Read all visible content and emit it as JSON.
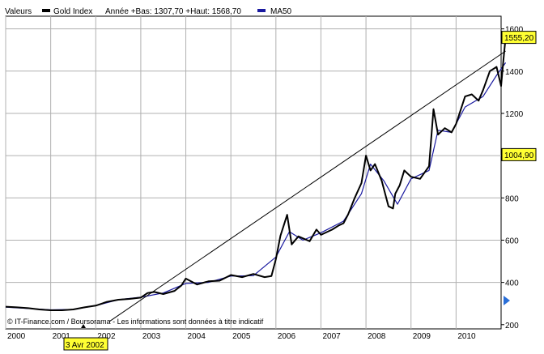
{
  "legend": {
    "label_prefix": "Valeurs",
    "series_name": "Gold Index",
    "stats": "Année +Bas: 1307,70 +Haut: 1568,70",
    "ma_name": "MA50"
  },
  "footer_note": "© IT-Finance.com / Boursorama - Les informations sont données à titre indicatif",
  "cursor_date_label": "3 Avr 2002",
  "price_tag_last": "1555,20",
  "price_tag_mid": "1004,90",
  "price_tag_mid_value": 1004.9,
  "colors": {
    "background": "#ffffff",
    "grid": "#b0b0b0",
    "price_line": "#000000",
    "ma_line": "#1a1aa0",
    "tag_fill": "#ffff33",
    "right_marker": "#2a6fd8"
  },
  "chart_data": {
    "type": "line",
    "title": "",
    "xlabel": "",
    "ylabel": "",
    "x_ticks": [
      "2000",
      "2001",
      "2002",
      "2003",
      "2004",
      "2005",
      "2006",
      "2007",
      "2008",
      "2009",
      "2010"
    ],
    "y_ticks": [
      200,
      400,
      600,
      800,
      1000,
      1200,
      1400,
      1600
    ],
    "xlim": [
      2000.0,
      2011.0
    ],
    "ylim": [
      180,
      1660
    ],
    "grid": true,
    "legend_position": "top-left",
    "series": [
      {
        "name": "Gold Index",
        "x": [
          2000.0,
          2000.25,
          2000.5,
          2000.75,
          2001.0,
          2001.25,
          2001.5,
          2001.75,
          2002.0,
          2002.25,
          2002.5,
          2002.75,
          2003.0,
          2003.15,
          2003.3,
          2003.5,
          2003.75,
          2003.9,
          2004.0,
          2004.25,
          2004.5,
          2004.75,
          2005.0,
          2005.25,
          2005.5,
          2005.75,
          2005.9,
          2006.0,
          2006.1,
          2006.25,
          2006.35,
          2006.5,
          2006.75,
          2006.9,
          2007.0,
          2007.25,
          2007.4,
          2007.5,
          2007.6,
          2007.75,
          2007.9,
          2008.0,
          2008.1,
          2008.2,
          2008.35,
          2008.5,
          2008.6,
          2008.65,
          2008.75,
          2008.85,
          2009.0,
          2009.2,
          2009.4,
          2009.5,
          2009.6,
          2009.75,
          2009.9,
          2010.0,
          2010.2,
          2010.35,
          2010.5,
          2010.6,
          2010.75,
          2010.9,
          2011.0,
          2011.05,
          2011.1
        ],
        "values": [
          285,
          282,
          278,
          272,
          268,
          268,
          272,
          282,
          290,
          308,
          318,
          322,
          328,
          350,
          355,
          345,
          360,
          385,
          418,
          390,
          405,
          408,
          435,
          425,
          440,
          425,
          430,
          510,
          620,
          720,
          580,
          618,
          595,
          650,
          625,
          650,
          670,
          680,
          720,
          800,
          870,
          1000,
          930,
          960,
          880,
          760,
          750,
          820,
          860,
          930,
          900,
          890,
          950,
          1220,
          1100,
          1130,
          1110,
          1150,
          1280,
          1290,
          1260,
          1310,
          1400,
          1420,
          1330,
          1450,
          1560
        ]
      },
      {
        "name": "MA50",
        "x": [
          2000.0,
          2001.0,
          2001.5,
          2002.0,
          2002.5,
          2003.0,
          2003.5,
          2004.0,
          2004.5,
          2005.0,
          2005.5,
          2006.0,
          2006.3,
          2006.6,
          2007.0,
          2007.5,
          2007.9,
          2008.1,
          2008.4,
          2008.7,
          2009.0,
          2009.4,
          2009.6,
          2009.9,
          2010.2,
          2010.6,
          2010.9,
          2011.1
        ],
        "values": [
          283,
          270,
          272,
          290,
          318,
          330,
          350,
          395,
          400,
          430,
          432,
          520,
          640,
          600,
          635,
          690,
          820,
          960,
          880,
          770,
          890,
          930,
          1120,
          1110,
          1230,
          1280,
          1380,
          1440
        ]
      },
      {
        "name": "Trendline",
        "x": [
          2002.3,
          2011.1
        ],
        "values": [
          215,
          1495
        ]
      }
    ]
  }
}
